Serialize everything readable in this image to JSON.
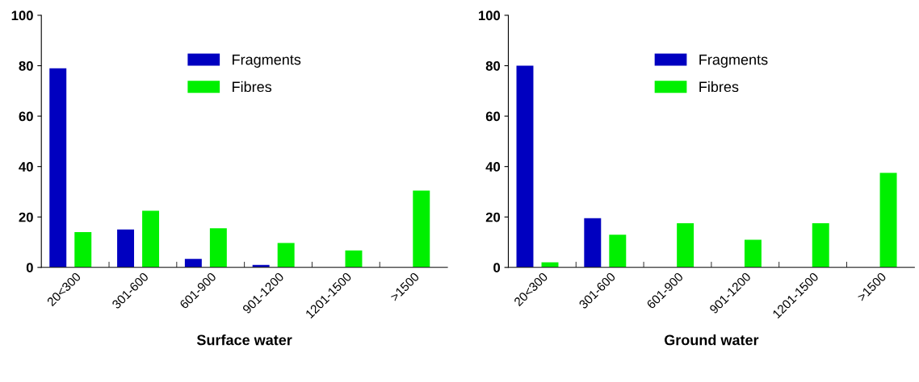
{
  "chart_data": [
    {
      "type": "bar",
      "xlabel": "Surface water",
      "categories": [
        "20<300",
        "301-600",
        "601-900",
        "901-1200",
        "1201-1500",
        ">1500"
      ],
      "ylim": [
        0,
        100
      ],
      "yticks": [
        0,
        20,
        40,
        60,
        80,
        100
      ],
      "grid": false,
      "legend": "top",
      "series": [
        {
          "name": "Fragments",
          "color": "#0000c0",
          "values": [
            79,
            15,
            3.4,
            1,
            0,
            0
          ]
        },
        {
          "name": "Fibres",
          "color": "#00f000",
          "values": [
            14,
            22.5,
            15.5,
            9.7,
            6.7,
            30.5
          ]
        }
      ]
    },
    {
      "type": "bar",
      "xlabel": "Ground water",
      "categories": [
        "20<300",
        "301-600",
        "601-900",
        "901-1200",
        "1201-1500",
        ">1500"
      ],
      "ylim": [
        0,
        100
      ],
      "yticks": [
        0,
        20,
        40,
        60,
        80,
        100
      ],
      "grid": false,
      "legend": "top",
      "series": [
        {
          "name": "Fragments",
          "color": "#0000c0",
          "values": [
            80,
            19.5,
            0,
            0,
            0,
            0
          ]
        },
        {
          "name": "Fibres",
          "color": "#00f000",
          "values": [
            2,
            13,
            17.5,
            11,
            17.5,
            37.5
          ]
        }
      ]
    }
  ]
}
